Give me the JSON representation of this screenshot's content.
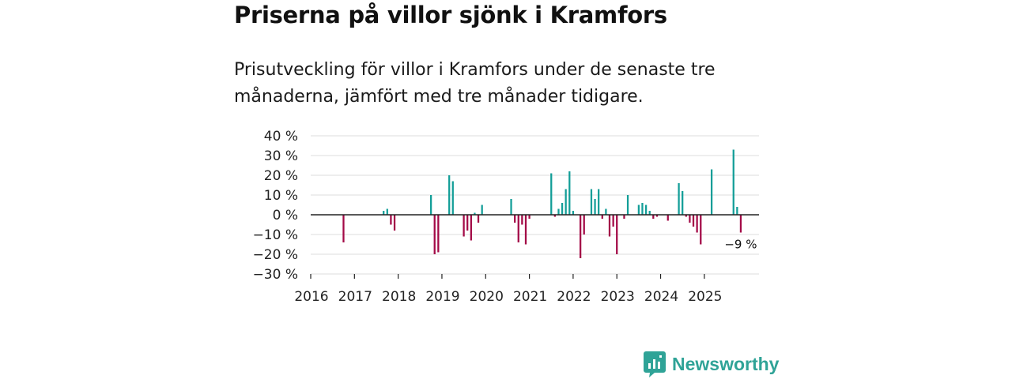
{
  "header": {
    "title": "Priserna på villor sjönk i Kramfors",
    "subtitle": "Prisutveckling för villor i Kramfors under de senaste tre månaderna, jämfört med tre månader tidigare."
  },
  "brand": {
    "name": "Newsworthy"
  },
  "colors": {
    "positive": "#139e98",
    "negative": "#a30a47",
    "grid": "#dddddd",
    "axis": "#222222"
  },
  "chart_data": {
    "type": "bar",
    "title": "Priserna på villor sjönk i Kramfors",
    "xlabel": "",
    "ylabel": "",
    "x_range": [
      2016.0,
      2026.25
    ],
    "ylim": [
      -30,
      40
    ],
    "y_ticks": [
      40,
      30,
      20,
      10,
      0,
      -10,
      -20,
      -30
    ],
    "y_tick_labels": [
      "40 %",
      "30 %",
      "20 %",
      "10 %",
      "0 %",
      "−10 %",
      "−20 %",
      "−30 %"
    ],
    "x_ticks": [
      2016,
      2017,
      2018,
      2019,
      2020,
      2021,
      2022,
      2023,
      2024,
      2025
    ],
    "x_tick_labels": [
      "2016",
      "2017",
      "2018",
      "2019",
      "2020",
      "2021",
      "2022",
      "2023",
      "2024",
      "2025"
    ],
    "grid": true,
    "bar_width_years": 0.0625,
    "points": [
      {
        "x": 2016.75,
        "y": -14
      },
      {
        "x": 2017.667,
        "y": 2
      },
      {
        "x": 2017.75,
        "y": 3
      },
      {
        "x": 2017.833,
        "y": -5
      },
      {
        "x": 2017.917,
        "y": -8
      },
      {
        "x": 2018.75,
        "y": 10
      },
      {
        "x": 2018.833,
        "y": -20
      },
      {
        "x": 2018.917,
        "y": -19
      },
      {
        "x": 2019.167,
        "y": 20
      },
      {
        "x": 2019.25,
        "y": 17
      },
      {
        "x": 2019.5,
        "y": -11
      },
      {
        "x": 2019.583,
        "y": -8
      },
      {
        "x": 2019.667,
        "y": -13
      },
      {
        "x": 2019.75,
        "y": 1
      },
      {
        "x": 2019.833,
        "y": -4
      },
      {
        "x": 2019.917,
        "y": 5
      },
      {
        "x": 2020.583,
        "y": 8
      },
      {
        "x": 2020.667,
        "y": -4
      },
      {
        "x": 2020.75,
        "y": -14
      },
      {
        "x": 2020.833,
        "y": -5
      },
      {
        "x": 2020.917,
        "y": -15
      },
      {
        "x": 2021.0,
        "y": -2
      },
      {
        "x": 2021.5,
        "y": 21
      },
      {
        "x": 2021.583,
        "y": -1
      },
      {
        "x": 2021.667,
        "y": 3
      },
      {
        "x": 2021.75,
        "y": 6
      },
      {
        "x": 2021.833,
        "y": 13
      },
      {
        "x": 2021.917,
        "y": 22
      },
      {
        "x": 2022.0,
        "y": 2
      },
      {
        "x": 2022.167,
        "y": -22
      },
      {
        "x": 2022.25,
        "y": -10
      },
      {
        "x": 2022.417,
        "y": 13
      },
      {
        "x": 2022.5,
        "y": 8
      },
      {
        "x": 2022.583,
        "y": 13
      },
      {
        "x": 2022.667,
        "y": -2
      },
      {
        "x": 2022.75,
        "y": 3
      },
      {
        "x": 2022.833,
        "y": -11
      },
      {
        "x": 2022.917,
        "y": -6
      },
      {
        "x": 2023.0,
        "y": -20
      },
      {
        "x": 2023.167,
        "y": -2
      },
      {
        "x": 2023.25,
        "y": 10
      },
      {
        "x": 2023.5,
        "y": 5
      },
      {
        "x": 2023.583,
        "y": 6
      },
      {
        "x": 2023.667,
        "y": 5
      },
      {
        "x": 2023.75,
        "y": 2
      },
      {
        "x": 2023.833,
        "y": -2
      },
      {
        "x": 2023.917,
        "y": -1
      },
      {
        "x": 2024.167,
        "y": -3
      },
      {
        "x": 2024.417,
        "y": 16
      },
      {
        "x": 2024.5,
        "y": 12
      },
      {
        "x": 2024.583,
        "y": -1
      },
      {
        "x": 2024.667,
        "y": -4
      },
      {
        "x": 2024.75,
        "y": -6
      },
      {
        "x": 2024.833,
        "y": -9
      },
      {
        "x": 2024.917,
        "y": -15
      },
      {
        "x": 2025.167,
        "y": 23
      },
      {
        "x": 2025.667,
        "y": 33
      },
      {
        "x": 2025.75,
        "y": 4
      },
      {
        "x": 2025.833,
        "y": -9
      }
    ],
    "annotations": [
      {
        "x": 2025.833,
        "y": -9,
        "text": "−9 %"
      }
    ]
  }
}
